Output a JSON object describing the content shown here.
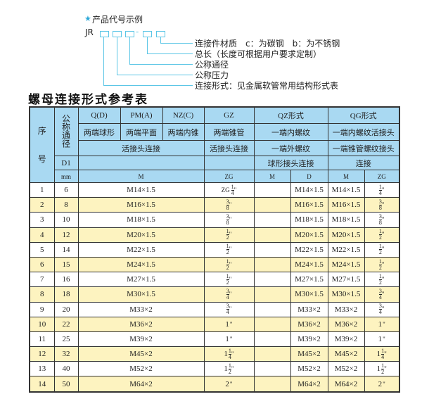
{
  "diagram": {
    "heading": "产品代号示例",
    "star_icon": "star-icon",
    "accent_color": "#5cc6e6",
    "code_prefix": "JR",
    "dash": "-",
    "labels": [
      "连接件材质　c：为碳钢　b：为不锈钢",
      "总长（长度可根据用户要求定制）",
      "公称通径",
      "公称压力",
      "连接形式：见金属软管常用结构形式表"
    ]
  },
  "table_title": "螺母连接形式参考表",
  "table": {
    "header": {
      "seq_top": "序",
      "seq_bottom": "号",
      "nominal": "公称通径",
      "row1": [
        "Q(D)",
        "PM(A)",
        "NZ(C)",
        "GZ",
        "QZ形式",
        "QG形式"
      ],
      "row2": [
        "两端球形",
        "两端平面",
        "两端内锥",
        "两端锥管",
        "一端内螺纹",
        "一端内螺纹活接头"
      ],
      "row3": [
        "活接头连接",
        "活接头连接",
        "一端外螺纹",
        "一端锥管螺纹接头"
      ],
      "row4": [
        "D1",
        "",
        "",
        "球形接头连接",
        "连接"
      ],
      "row5": [
        "mm",
        "M",
        "ZG",
        "M",
        "D",
        "M",
        "ZG"
      ]
    },
    "header_color": "#a9d9f2",
    "alt_row_color": "#fdf3c0",
    "rows": [
      {
        "no": "1",
        "dn": "6",
        "m": "M14×1.5",
        "zg": {
          "pre": "ZG",
          "whole": "",
          "num": "1",
          "den": "4"
        },
        "qz_m": "",
        "qz_d": "M14×1.5",
        "qg_m": "M14×1.5",
        "qg_zg": {
          "pre": "",
          "whole": "",
          "num": "1",
          "den": "4"
        }
      },
      {
        "no": "2",
        "dn": "8",
        "m": "M16×1.5",
        "zg": {
          "pre": "",
          "whole": "",
          "num": "3",
          "den": "8"
        },
        "qz_m": "",
        "qz_d": "M16×1.5",
        "qg_m": "M16×1.5",
        "qg_zg": {
          "pre": "",
          "whole": "",
          "num": "3",
          "den": "8"
        }
      },
      {
        "no": "3",
        "dn": "10",
        "m": "M18×1.5",
        "zg": {
          "pre": "",
          "whole": "",
          "num": "3",
          "den": "8"
        },
        "qz_m": "",
        "qz_d": "M18×1.5",
        "qg_m": "M18×1.5",
        "qg_zg": {
          "pre": "",
          "whole": "",
          "num": "3",
          "den": "8"
        }
      },
      {
        "no": "4",
        "dn": "12",
        "m": "M20×1.5",
        "zg": {
          "pre": "",
          "whole": "",
          "num": "1",
          "den": "2"
        },
        "qz_m": "",
        "qz_d": "M20×1.5",
        "qg_m": "M20×1.5",
        "qg_zg": {
          "pre": "",
          "whole": "",
          "num": "1",
          "den": "2"
        }
      },
      {
        "no": "5",
        "dn": "14",
        "m": "M22×1.5",
        "zg": {
          "pre": "",
          "whole": "",
          "num": "1",
          "den": "2"
        },
        "qz_m": "",
        "qz_d": "M22×1.5",
        "qg_m": "M22×1.5",
        "qg_zg": {
          "pre": "",
          "whole": "",
          "num": "1",
          "den": "2"
        }
      },
      {
        "no": "6",
        "dn": "15",
        "m": "M24×1.5",
        "zg": {
          "pre": "",
          "whole": "",
          "num": "1",
          "den": "2"
        },
        "qz_m": "",
        "qz_d": "M24×1.5",
        "qg_m": "M24×1.5",
        "qg_zg": {
          "pre": "",
          "whole": "",
          "num": "1",
          "den": "2"
        }
      },
      {
        "no": "7",
        "dn": "16",
        "m": "M27×1.5",
        "zg": {
          "pre": "",
          "whole": "",
          "num": "1",
          "den": "2"
        },
        "qz_m": "",
        "qz_d": "M27×1.5",
        "qg_m": "M27×1.5",
        "qg_zg": {
          "pre": "",
          "whole": "",
          "num": "1",
          "den": "2"
        }
      },
      {
        "no": "8",
        "dn": "18",
        "m": "M30×1.5",
        "zg": {
          "pre": "",
          "whole": "",
          "num": "3",
          "den": "4"
        },
        "qz_m": "",
        "qz_d": "M30×1.5",
        "qg_m": "M30×1.5",
        "qg_zg": {
          "pre": "",
          "whole": "",
          "num": "3",
          "den": "4"
        }
      },
      {
        "no": "9",
        "dn": "20",
        "m": "M33×2",
        "zg": {
          "pre": "",
          "whole": "",
          "num": "3",
          "den": "4"
        },
        "qz_m": "",
        "qz_d": "M33×2",
        "qg_m": "M33×2",
        "qg_zg": {
          "pre": "",
          "whole": "",
          "num": "3",
          "den": "4"
        }
      },
      {
        "no": "10",
        "dn": "22",
        "m": "M36×2",
        "zg": {
          "pre": "",
          "whole": "1",
          "num": "",
          "den": ""
        },
        "qz_m": "",
        "qz_d": "M36×2",
        "qg_m": "M36×2",
        "qg_zg": {
          "pre": "",
          "whole": "1",
          "num": "",
          "den": ""
        }
      },
      {
        "no": "11",
        "dn": "25",
        "m": "M39×2",
        "zg": {
          "pre": "",
          "whole": "1",
          "num": "",
          "den": ""
        },
        "qz_m": "",
        "qz_d": "M39×2",
        "qg_m": "M39×2",
        "qg_zg": {
          "pre": "",
          "whole": "1",
          "num": "",
          "den": ""
        }
      },
      {
        "no": "12",
        "dn": "32",
        "m": "M45×2",
        "zg": {
          "pre": "",
          "whole": "1",
          "num": "1",
          "den": "4"
        },
        "qz_m": "",
        "qz_d": "M45×2",
        "qg_m": "M45×2",
        "qg_zg": {
          "pre": "",
          "whole": "1",
          "num": "1",
          "den": "4"
        }
      },
      {
        "no": "13",
        "dn": "40",
        "m": "M52×2",
        "zg": {
          "pre": "",
          "whole": "1",
          "num": "1",
          "den": "2"
        },
        "qz_m": "",
        "qz_d": "M52×2",
        "qg_m": "M52×2",
        "qg_zg": {
          "pre": "",
          "whole": "1",
          "num": "1",
          "den": "2"
        }
      },
      {
        "no": "14",
        "dn": "50",
        "m": "M64×2",
        "zg": {
          "pre": "",
          "whole": "2",
          "num": "",
          "den": ""
        },
        "qz_m": "",
        "qz_d": "M64×2",
        "qg_m": "M64×2",
        "qg_zg": {
          "pre": "",
          "whole": "2",
          "num": "",
          "den": ""
        }
      }
    ],
    "inch_mark": "\""
  }
}
